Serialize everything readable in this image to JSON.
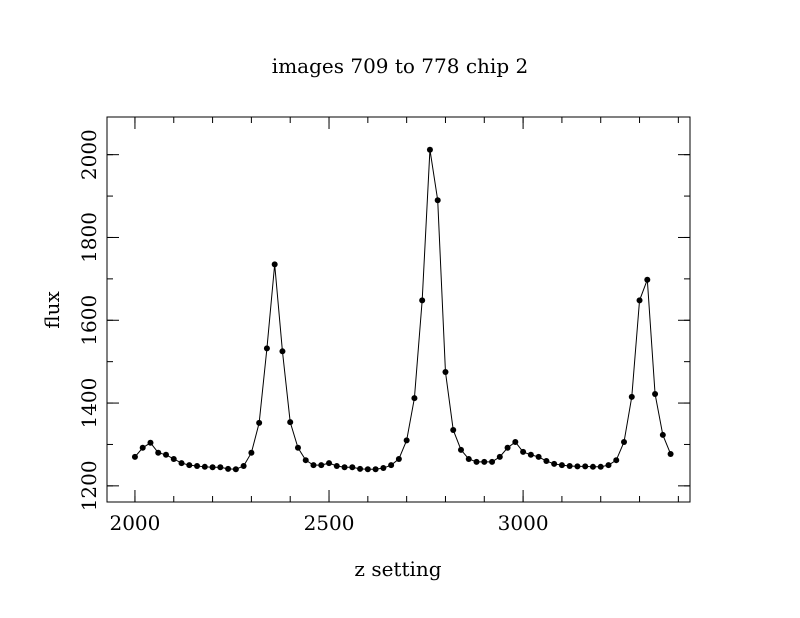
{
  "chart_data": {
    "type": "line",
    "title": "images  709 to  778 chip 2",
    "xlabel": "z setting",
    "ylabel": "flux",
    "x": [
      2000,
      2020,
      2040,
      2060,
      2080,
      2100,
      2120,
      2140,
      2160,
      2180,
      2200,
      2220,
      2240,
      2260,
      2280,
      2300,
      2320,
      2340,
      2360,
      2380,
      2400,
      2420,
      2440,
      2460,
      2480,
      2500,
      2520,
      2540,
      2560,
      2580,
      2600,
      2620,
      2640,
      2660,
      2680,
      2700,
      2720,
      2740,
      2760,
      2780,
      2800,
      2820,
      2840,
      2860,
      2880,
      2900,
      2920,
      2940,
      2960,
      2980,
      3000,
      3020,
      3040,
      3060,
      3080,
      3100,
      3120,
      3140,
      3160,
      3180,
      3200,
      3220,
      3240,
      3260,
      3280,
      3300,
      3320,
      3340,
      3360,
      3380
    ],
    "series": [
      {
        "name": "flux",
        "color": "#000000",
        "values": [
          1270,
          1292,
          1304,
          1280,
          1275,
          1265,
          1255,
          1250,
          1248,
          1246,
          1245,
          1245,
          1241,
          1240,
          1248,
          1280,
          1352,
          1532,
          1735,
          1525,
          1354,
          1292,
          1262,
          1250,
          1250,
          1255,
          1248,
          1245,
          1245,
          1241,
          1240,
          1240,
          1243,
          1250,
          1265,
          1310,
          1412,
          1648,
          2012,
          1890,
          1475,
          1335,
          1287,
          1265,
          1258,
          1258,
          1258,
          1270,
          1292,
          1306,
          1282,
          1275,
          1270,
          1260,
          1253,
          1250,
          1248,
          1247,
          1247,
          1246,
          1246,
          1250,
          1262,
          1306,
          1415,
          1648,
          1698,
          1422,
          1323,
          1277
        ]
      }
    ],
    "xlim": [
      1928,
      3430
    ],
    "ylim": [
      1161,
      2091
    ],
    "xticks": [
      2000,
      2500,
      3000
    ],
    "yticks": [
      1200,
      1400,
      1600,
      1800,
      2000
    ],
    "xminorticks": [
      2000,
      2100,
      2200,
      2300,
      2400,
      2500,
      2600,
      2700,
      2800,
      2900,
      3000,
      3100,
      3200,
      3300,
      3400
    ],
    "yminorticks": [
      1200,
      1300,
      1400,
      1500,
      1600,
      1700,
      1800,
      1900,
      2000
    ]
  }
}
